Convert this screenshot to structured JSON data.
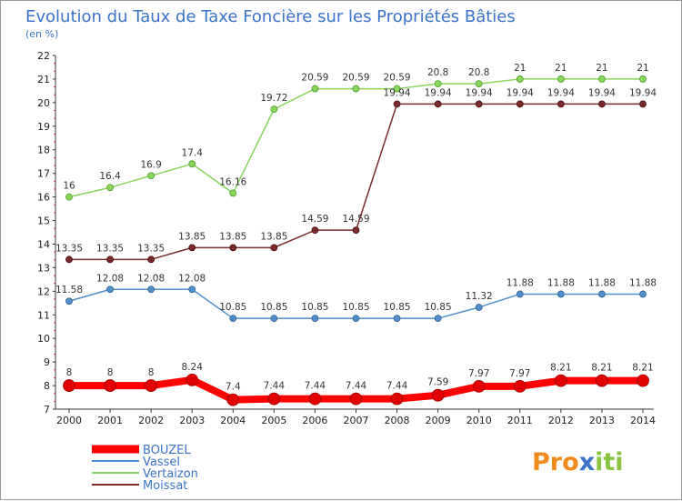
{
  "chart_data": {
    "type": "line",
    "title": "Evolution du Taux de Taxe Foncière sur les Propriétés Bâties",
    "subtitle": "(en %)",
    "x": [
      "2000",
      "2001",
      "2002",
      "2003",
      "2004",
      "2005",
      "2006",
      "2007",
      "2008",
      "2009",
      "2010",
      "2011",
      "2012",
      "2013",
      "2014"
    ],
    "ylim": [
      7,
      22
    ],
    "yticks": [
      7,
      8,
      9,
      10,
      11,
      12,
      13,
      14,
      15,
      16,
      17,
      18,
      19,
      20,
      21,
      22
    ],
    "grid": false,
    "legend_position": "bottom-left",
    "series": [
      {
        "name": "BOUZEL",
        "color": "#ff0000",
        "values": [
          8,
          8,
          8,
          8.24,
          7.4,
          7.44,
          7.44,
          7.44,
          7.44,
          7.59,
          7.97,
          7.97,
          8.21,
          8.21,
          8.21
        ],
        "labels": [
          "8",
          "8",
          "8",
          "8.24",
          "7.4",
          "7.44",
          "7.44",
          "7.44",
          "7.44",
          "7.59",
          "7.97",
          "7.97",
          "8.21",
          "8.21",
          "8.21"
        ]
      },
      {
        "name": "Vassel",
        "color": "#4f8fcb",
        "values": [
          11.58,
          12.08,
          12.08,
          12.08,
          10.85,
          10.85,
          10.85,
          10.85,
          10.85,
          10.85,
          11.32,
          11.88,
          11.88,
          11.88,
          11.88
        ],
        "labels": [
          "11.58",
          "12.08",
          "12.08",
          "12.08",
          "10.85",
          "10.85",
          "10.85",
          "10.85",
          "10.85",
          "10.85",
          "11.32",
          "11.88",
          "11.88",
          "11.88",
          "11.88"
        ]
      },
      {
        "name": "Vertaizon",
        "color": "#88d65a",
        "values": [
          16,
          16.4,
          16.9,
          17.4,
          16.16,
          19.72,
          20.59,
          20.59,
          20.59,
          20.8,
          20.8,
          21,
          21,
          21,
          21
        ],
        "labels": [
          "16",
          "16.4",
          "16.9",
          "17.4",
          "16.16",
          "19.72",
          "20.59",
          "20.59",
          "20.59",
          "20.8",
          "20.8",
          "21",
          "21",
          "21",
          "21"
        ]
      },
      {
        "name": "Moissat",
        "color": "#7a2a2a",
        "values": [
          13.35,
          13.35,
          13.35,
          13.85,
          13.85,
          13.85,
          14.59,
          14.59,
          19.94,
          19.94,
          19.94,
          19.94,
          19.94,
          19.94,
          19.94
        ],
        "labels": [
          "13.35",
          "13.35",
          "13.35",
          "13.85",
          "13.85",
          "13.85",
          "14.59",
          "14.59",
          "19.94",
          "19.94",
          "19.94",
          "19.94",
          "19.94",
          "19.94",
          "19.94"
        ]
      }
    ]
  },
  "logo": {
    "letters": [
      "P",
      "r",
      "o",
      "x",
      "i",
      "t",
      "i"
    ],
    "colors": [
      "#f08a1c",
      "#f08a1c",
      "#f08a1c",
      "#3b73c9",
      "#88c43f",
      "#88c43f",
      "#88c43f"
    ]
  }
}
